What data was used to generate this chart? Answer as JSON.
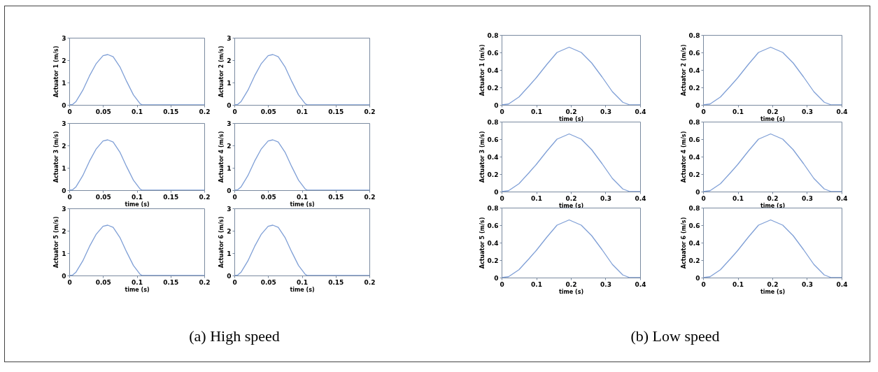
{
  "chart_data": [
    {
      "type": "line",
      "ylabel": "Actuator 1 (m/s)",
      "x": [
        0,
        0.005,
        0.01,
        0.02,
        0.03,
        0.04,
        0.05,
        0.057,
        0.065,
        0.075,
        0.085,
        0.095,
        0.105,
        0.108,
        0.15,
        0.2
      ],
      "values": [
        0,
        0.02,
        0.15,
        0.65,
        1.3,
        1.85,
        2.2,
        2.25,
        2.15,
        1.7,
        1.05,
        0.45,
        0.05,
        0,
        0,
        0
      ],
      "color": "#7f9fd6",
      "xlim": [
        0,
        0.2
      ],
      "xticks": [
        0,
        0.05,
        0.1,
        0.15,
        0.2
      ],
      "ylim": [
        0,
        3
      ],
      "yticks": [
        0,
        1,
        2,
        3
      ]
    },
    {
      "type": "line",
      "ylabel": "Actuator 2 (m/s)",
      "x": [
        0,
        0.005,
        0.01,
        0.02,
        0.03,
        0.04,
        0.05,
        0.057,
        0.065,
        0.075,
        0.085,
        0.095,
        0.105,
        0.108,
        0.15,
        0.2
      ],
      "values": [
        0,
        0.02,
        0.15,
        0.65,
        1.3,
        1.85,
        2.2,
        2.25,
        2.15,
        1.7,
        1.05,
        0.45,
        0.05,
        0,
        0,
        0
      ],
      "color": "#7f9fd6",
      "xlim": [
        0,
        0.2
      ],
      "xticks": [
        0,
        0.05,
        0.1,
        0.15,
        0.2
      ],
      "ylim": [
        0,
        3
      ],
      "yticks": [
        0,
        1,
        2,
        3
      ]
    },
    {
      "type": "line",
      "xlabel": "time (s)",
      "ylabel": "Actuator 3 (m/s)",
      "x": [
        0,
        0.005,
        0.01,
        0.02,
        0.03,
        0.04,
        0.05,
        0.057,
        0.065,
        0.075,
        0.085,
        0.095,
        0.105,
        0.108,
        0.15,
        0.2
      ],
      "values": [
        0,
        0.02,
        0.15,
        0.65,
        1.3,
        1.85,
        2.2,
        2.25,
        2.15,
        1.7,
        1.05,
        0.45,
        0.05,
        0,
        0,
        0
      ],
      "color": "#7f9fd6",
      "xlim": [
        0,
        0.2
      ],
      "xticks": [
        0,
        0.05,
        0.1,
        0.15,
        0.2
      ],
      "ylim": [
        0,
        3
      ],
      "yticks": [
        0,
        1,
        2,
        3
      ]
    },
    {
      "type": "line",
      "xlabel": "time (s)",
      "ylabel": "Actuator 4 (m/s)",
      "x": [
        0,
        0.005,
        0.01,
        0.02,
        0.03,
        0.04,
        0.05,
        0.057,
        0.065,
        0.075,
        0.085,
        0.095,
        0.105,
        0.108,
        0.15,
        0.2
      ],
      "values": [
        0,
        0.02,
        0.15,
        0.65,
        1.3,
        1.85,
        2.2,
        2.25,
        2.15,
        1.7,
        1.05,
        0.45,
        0.05,
        0,
        0,
        0
      ],
      "color": "#7f9fd6",
      "xlim": [
        0,
        0.2
      ],
      "xticks": [
        0,
        0.05,
        0.1,
        0.15,
        0.2
      ],
      "ylim": [
        0,
        3
      ],
      "yticks": [
        0,
        1,
        2,
        3
      ]
    },
    {
      "type": "line",
      "xlabel": "time (s)",
      "ylabel": "Actuator 5 (m/s)",
      "x": [
        0,
        0.005,
        0.01,
        0.02,
        0.03,
        0.04,
        0.05,
        0.057,
        0.065,
        0.075,
        0.085,
        0.095,
        0.105,
        0.108,
        0.15,
        0.2
      ],
      "values": [
        0,
        0.02,
        0.15,
        0.65,
        1.3,
        1.85,
        2.2,
        2.25,
        2.15,
        1.7,
        1.05,
        0.45,
        0.05,
        0,
        0,
        0
      ],
      "color": "#7f9fd6",
      "xlim": [
        0,
        0.2
      ],
      "xticks": [
        0,
        0.05,
        0.1,
        0.15,
        0.2
      ],
      "ylim": [
        0,
        3
      ],
      "yticks": [
        0,
        1,
        2,
        3
      ],
      "annotations": [
        "(a) High speed"
      ]
    },
    {
      "type": "line",
      "xlabel": "time (s)",
      "ylabel": "Actuator 6 (m/s)",
      "x": [
        0,
        0.005,
        0.01,
        0.02,
        0.03,
        0.04,
        0.05,
        0.057,
        0.065,
        0.075,
        0.085,
        0.095,
        0.105,
        0.108,
        0.15,
        0.2
      ],
      "values": [
        0,
        0.02,
        0.15,
        0.65,
        1.3,
        1.85,
        2.2,
        2.25,
        2.15,
        1.7,
        1.05,
        0.45,
        0.05,
        0,
        0,
        0
      ],
      "color": "#7f9fd6",
      "xlim": [
        0,
        0.2
      ],
      "xticks": [
        0,
        0.05,
        0.1,
        0.15,
        0.2
      ],
      "ylim": [
        0,
        3
      ],
      "yticks": [
        0,
        1,
        2,
        3
      ]
    },
    {
      "type": "line",
      "xlabel": "time (s)",
      "ylabel": "Actuator 1 (m/s)",
      "x": [
        0,
        0.02,
        0.05,
        0.08,
        0.1,
        0.13,
        0.16,
        0.195,
        0.23,
        0.26,
        0.29,
        0.32,
        0.35,
        0.37,
        0.4
      ],
      "values": [
        0,
        0.01,
        0.09,
        0.22,
        0.31,
        0.46,
        0.6,
        0.66,
        0.6,
        0.48,
        0.32,
        0.15,
        0.03,
        0,
        0
      ],
      "color": "#7f9fd6",
      "xlim": [
        0,
        0.4
      ],
      "xticks": [
        0,
        0.1,
        0.2,
        0.3,
        0.4
      ],
      "ylim": [
        0,
        0.8
      ],
      "yticks": [
        0,
        0.2,
        0.4,
        0.6,
        0.8
      ]
    },
    {
      "type": "line",
      "xlabel": "time (s)",
      "ylabel": "Actuator 2 (m/s)",
      "x": [
        0,
        0.02,
        0.05,
        0.08,
        0.1,
        0.13,
        0.16,
        0.195,
        0.23,
        0.26,
        0.29,
        0.32,
        0.35,
        0.37,
        0.4
      ],
      "values": [
        0,
        0.01,
        0.09,
        0.22,
        0.31,
        0.46,
        0.6,
        0.66,
        0.6,
        0.48,
        0.32,
        0.15,
        0.03,
        0,
        0
      ],
      "color": "#7f9fd6",
      "xlim": [
        0,
        0.4
      ],
      "xticks": [
        0,
        0.1,
        0.2,
        0.3,
        0.4
      ],
      "ylim": [
        0,
        0.8
      ],
      "yticks": [
        0,
        0.2,
        0.4,
        0.6,
        0.8
      ]
    },
    {
      "type": "line",
      "xlabel": "time (s)",
      "ylabel": "Actuator 3 (m/s)",
      "x": [
        0,
        0.02,
        0.05,
        0.08,
        0.1,
        0.13,
        0.16,
        0.195,
        0.23,
        0.26,
        0.29,
        0.32,
        0.35,
        0.37,
        0.4
      ],
      "values": [
        0,
        0.01,
        0.09,
        0.22,
        0.31,
        0.46,
        0.6,
        0.66,
        0.6,
        0.48,
        0.32,
        0.15,
        0.03,
        0,
        0
      ],
      "color": "#7f9fd6",
      "xlim": [
        0,
        0.4
      ],
      "xticks": [
        0,
        0.1,
        0.2,
        0.3,
        0.4
      ],
      "ylim": [
        0,
        0.8
      ],
      "yticks": [
        0,
        0.2,
        0.4,
        0.6,
        0.8
      ]
    },
    {
      "type": "line",
      "xlabel": "time (s)",
      "ylabel": "Actuator 4 (m/s)",
      "x": [
        0,
        0.02,
        0.05,
        0.08,
        0.1,
        0.13,
        0.16,
        0.195,
        0.23,
        0.26,
        0.29,
        0.32,
        0.35,
        0.37,
        0.4
      ],
      "values": [
        0,
        0.01,
        0.09,
        0.22,
        0.31,
        0.46,
        0.6,
        0.66,
        0.6,
        0.48,
        0.32,
        0.15,
        0.03,
        0,
        0
      ],
      "color": "#7f9fd6",
      "xlim": [
        0,
        0.4
      ],
      "xticks": [
        0,
        0.1,
        0.2,
        0.3,
        0.4
      ],
      "ylim": [
        0,
        0.8
      ],
      "yticks": [
        0,
        0.2,
        0.4,
        0.6,
        0.8
      ]
    },
    {
      "type": "line",
      "xlabel": "time (s)",
      "ylabel": "Actuator 5 (m/s)",
      "x": [
        0,
        0.02,
        0.05,
        0.08,
        0.1,
        0.13,
        0.16,
        0.195,
        0.23,
        0.26,
        0.29,
        0.32,
        0.35,
        0.37,
        0.4
      ],
      "values": [
        0,
        0.01,
        0.09,
        0.22,
        0.31,
        0.46,
        0.6,
        0.66,
        0.6,
        0.48,
        0.32,
        0.15,
        0.03,
        0,
        0
      ],
      "color": "#7f9fd6",
      "xlim": [
        0,
        0.4
      ],
      "xticks": [
        0,
        0.1,
        0.2,
        0.3,
        0.4
      ],
      "ylim": [
        0,
        0.8
      ],
      "yticks": [
        0,
        0.2,
        0.4,
        0.6,
        0.8
      ],
      "annotations": [
        "(b) Low speed"
      ]
    },
    {
      "type": "line",
      "xlabel": "time (s)",
      "ylabel": "Actuator 6 (m/s)",
      "x": [
        0,
        0.02,
        0.05,
        0.08,
        0.1,
        0.13,
        0.16,
        0.195,
        0.23,
        0.26,
        0.29,
        0.32,
        0.35,
        0.37,
        0.4
      ],
      "values": [
        0,
        0.01,
        0.09,
        0.22,
        0.31,
        0.46,
        0.6,
        0.66,
        0.6,
        0.48,
        0.32,
        0.15,
        0.03,
        0,
        0
      ],
      "color": "#7f9fd6",
      "xlim": [
        0,
        0.4
      ],
      "xticks": [
        0,
        0.1,
        0.2,
        0.3,
        0.4
      ],
      "ylim": [
        0,
        0.8
      ],
      "yticks": [
        0,
        0.2,
        0.4,
        0.6,
        0.8
      ]
    }
  ]
}
